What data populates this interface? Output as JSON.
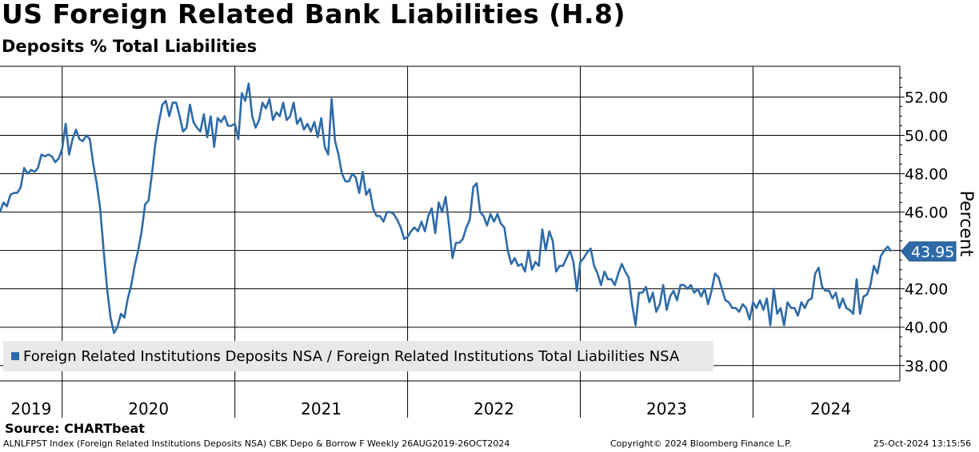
{
  "header": {
    "title": "US Foreign Related Bank Liabilities (H.8)",
    "subtitle": "Deposits % Total Liabilities"
  },
  "legend": {
    "label": "Foreign Related Institutions Deposits NSA / Foreign Related Institutions Total Liabilities NSA"
  },
  "source": "Source: CHARTbeat",
  "footer": {
    "left": "ALNLFPST Index (Foreign Related Institutions Deposits NSA) CBK Depo & Borrow F  Weekly 26AUG2019-26OCT2024",
    "middle": "Copyright© 2024 Bloomberg Finance L.P.",
    "right": "25-Oct-2024 13:15:56"
  },
  "colors": {
    "series": "#2e6aa8",
    "grid": "#000000",
    "last_value_bg": "#2e6aa8"
  },
  "chart_data": {
    "type": "line",
    "title": "US Foreign Related Bank Liabilities (H.8)",
    "subtitle": "Deposits % Total Liabilities",
    "xlabel": "",
    "ylabel": "Percent",
    "frequency": "weekly",
    "x_start": "2019-08-26",
    "x_end": "2024-10-26",
    "xlim": [
      2019.64,
      2024.85
    ],
    "ylim": [
      37.2,
      53.6
    ],
    "y_ticks": [
      38.0,
      40.0,
      42.0,
      44.0,
      46.0,
      48.0,
      50.0,
      52.0
    ],
    "y_tick_labels": [
      "38.00",
      "40.00",
      "42.00",
      "",
      "46.00",
      "48.00",
      "50.00",
      "52.00"
    ],
    "x_tick_labels": [
      "2019",
      "2020",
      "2021",
      "2022",
      "2023",
      "2024"
    ],
    "x_label_positions": [
      2019.82,
      2020.5,
      2021.5,
      2022.5,
      2023.5,
      2024.45
    ],
    "year_boundaries": [
      2020.0,
      2021.0,
      2022.0,
      2023.0,
      2024.0
    ],
    "last_value": 43.95,
    "last_value_label": "43.95",
    "grid": true,
    "legend_position": "bottom-left",
    "series": [
      {
        "name": "Foreign Related Institutions Deposits NSA / Foreign Related Institutions Total Liabilities NSA",
        "points": [
          [
            2019.64,
            46.0
          ],
          [
            2019.66,
            46.5
          ],
          [
            2019.68,
            46.3
          ],
          [
            2019.7,
            46.9
          ],
          [
            2019.72,
            47.0
          ],
          [
            2019.74,
            47.0
          ],
          [
            2019.76,
            47.3
          ],
          [
            2019.78,
            48.3
          ],
          [
            2019.8,
            48.0
          ],
          [
            2019.82,
            48.2
          ],
          [
            2019.84,
            48.1
          ],
          [
            2019.86,
            48.3
          ],
          [
            2019.88,
            49.0
          ],
          [
            2019.9,
            48.9
          ],
          [
            2019.92,
            49.0
          ],
          [
            2019.94,
            48.9
          ],
          [
            2019.96,
            48.6
          ],
          [
            2019.98,
            48.8
          ],
          [
            2020.0,
            49.3
          ],
          [
            2020.02,
            50.6
          ],
          [
            2020.04,
            49.0
          ],
          [
            2020.06,
            49.8
          ],
          [
            2020.08,
            50.3
          ],
          [
            2020.1,
            49.8
          ],
          [
            2020.12,
            49.7
          ],
          [
            2020.14,
            50.0
          ],
          [
            2020.16,
            49.8
          ],
          [
            2020.18,
            48.5
          ],
          [
            2020.2,
            47.5
          ],
          [
            2020.22,
            46.2
          ],
          [
            2020.24,
            44.0
          ],
          [
            2020.26,
            42.0
          ],
          [
            2020.28,
            40.5
          ],
          [
            2020.3,
            39.7
          ],
          [
            2020.32,
            40.0
          ],
          [
            2020.34,
            40.7
          ],
          [
            2020.36,
            40.5
          ],
          [
            2020.38,
            41.5
          ],
          [
            2020.4,
            42.2
          ],
          [
            2020.42,
            43.2
          ],
          [
            2020.44,
            44.0
          ],
          [
            2020.46,
            45.0
          ],
          [
            2020.48,
            46.4
          ],
          [
            2020.5,
            46.6
          ],
          [
            2020.52,
            48.0
          ],
          [
            2020.54,
            49.6
          ],
          [
            2020.56,
            50.7
          ],
          [
            2020.58,
            51.6
          ],
          [
            2020.6,
            51.8
          ],
          [
            2020.62,
            51.0
          ],
          [
            2020.64,
            51.7
          ],
          [
            2020.66,
            51.7
          ],
          [
            2020.68,
            51.0
          ],
          [
            2020.7,
            50.2
          ],
          [
            2020.72,
            50.4
          ],
          [
            2020.74,
            51.6
          ],
          [
            2020.76,
            50.7
          ],
          [
            2020.78,
            50.4
          ],
          [
            2020.8,
            50.2
          ],
          [
            2020.82,
            51.1
          ],
          [
            2020.84,
            49.9
          ],
          [
            2020.86,
            51.0
          ],
          [
            2020.88,
            49.4
          ],
          [
            2020.9,
            50.9
          ],
          [
            2020.92,
            50.7
          ],
          [
            2020.94,
            51.0
          ],
          [
            2020.96,
            50.5
          ],
          [
            2020.98,
            50.5
          ],
          [
            2021.0,
            50.6
          ],
          [
            2021.02,
            49.8
          ],
          [
            2021.04,
            52.2
          ],
          [
            2021.06,
            51.8
          ],
          [
            2021.08,
            52.7
          ],
          [
            2021.1,
            51.0
          ],
          [
            2021.12,
            50.4
          ],
          [
            2021.14,
            50.8
          ],
          [
            2021.16,
            51.7
          ],
          [
            2021.18,
            51.4
          ],
          [
            2021.2,
            51.9
          ],
          [
            2021.22,
            50.8
          ],
          [
            2021.24,
            51.2
          ],
          [
            2021.26,
            51.0
          ],
          [
            2021.28,
            51.7
          ],
          [
            2021.3,
            50.8
          ],
          [
            2021.32,
            51.0
          ],
          [
            2021.34,
            51.7
          ],
          [
            2021.36,
            50.6
          ],
          [
            2021.38,
            50.9
          ],
          [
            2021.4,
            50.3
          ],
          [
            2021.42,
            50.6
          ],
          [
            2021.44,
            50.2
          ],
          [
            2021.46,
            50.7
          ],
          [
            2021.48,
            49.9
          ],
          [
            2021.5,
            50.9
          ],
          [
            2021.52,
            49.4
          ],
          [
            2021.54,
            49.0
          ],
          [
            2021.56,
            51.9
          ],
          [
            2021.58,
            49.7
          ],
          [
            2021.6,
            49.0
          ],
          [
            2021.62,
            48.0
          ],
          [
            2021.64,
            47.6
          ],
          [
            2021.66,
            47.6
          ],
          [
            2021.68,
            48.0
          ],
          [
            2021.7,
            47.8
          ],
          [
            2021.72,
            47.0
          ],
          [
            2021.74,
            48.1
          ],
          [
            2021.76,
            46.9
          ],
          [
            2021.78,
            47.2
          ],
          [
            2021.8,
            46.2
          ],
          [
            2021.82,
            45.8
          ],
          [
            2021.84,
            45.8
          ],
          [
            2021.86,
            45.5
          ],
          [
            2021.88,
            46.0
          ],
          [
            2021.9,
            46.0
          ],
          [
            2021.92,
            45.9
          ],
          [
            2021.94,
            45.6
          ],
          [
            2021.96,
            45.2
          ],
          [
            2021.98,
            44.6
          ],
          [
            2022.0,
            44.7
          ],
          [
            2022.02,
            45.0
          ],
          [
            2022.04,
            45.2
          ],
          [
            2022.06,
            45.0
          ],
          [
            2022.08,
            45.5
          ],
          [
            2022.1,
            45.0
          ],
          [
            2022.12,
            45.8
          ],
          [
            2022.14,
            46.2
          ],
          [
            2022.16,
            44.9
          ],
          [
            2022.18,
            46.5
          ],
          [
            2022.2,
            46.0
          ],
          [
            2022.22,
            46.8
          ],
          [
            2022.24,
            45.3
          ],
          [
            2022.26,
            43.6
          ],
          [
            2022.28,
            44.4
          ],
          [
            2022.3,
            44.4
          ],
          [
            2022.32,
            44.6
          ],
          [
            2022.34,
            45.2
          ],
          [
            2022.36,
            45.6
          ],
          [
            2022.38,
            47.3
          ],
          [
            2022.4,
            47.5
          ],
          [
            2022.42,
            46.0
          ],
          [
            2022.44,
            45.8
          ],
          [
            2022.46,
            45.3
          ],
          [
            2022.48,
            45.9
          ],
          [
            2022.5,
            45.5
          ],
          [
            2022.52,
            45.9
          ],
          [
            2022.54,
            45.4
          ],
          [
            2022.56,
            45.2
          ],
          [
            2022.58,
            44.0
          ],
          [
            2022.6,
            43.3
          ],
          [
            2022.62,
            43.6
          ],
          [
            2022.64,
            43.2
          ],
          [
            2022.66,
            43.3
          ],
          [
            2022.68,
            42.9
          ],
          [
            2022.7,
            44.0
          ],
          [
            2022.72,
            43.0
          ],
          [
            2022.74,
            43.4
          ],
          [
            2022.76,
            43.2
          ],
          [
            2022.78,
            45.1
          ],
          [
            2022.8,
            44.0
          ],
          [
            2022.82,
            45.0
          ],
          [
            2022.84,
            44.5
          ],
          [
            2022.86,
            42.9
          ],
          [
            2022.88,
            43.2
          ],
          [
            2022.9,
            43.2
          ],
          [
            2022.92,
            43.6
          ],
          [
            2022.94,
            44.0
          ],
          [
            2022.96,
            43.4
          ],
          [
            2022.98,
            41.9
          ],
          [
            2023.0,
            43.4
          ],
          [
            2023.02,
            43.6
          ],
          [
            2023.04,
            43.9
          ],
          [
            2023.06,
            44.1
          ],
          [
            2023.08,
            43.2
          ],
          [
            2023.1,
            42.8
          ],
          [
            2023.12,
            42.2
          ],
          [
            2023.14,
            42.9
          ],
          [
            2023.16,
            42.5
          ],
          [
            2023.18,
            42.5
          ],
          [
            2023.2,
            42.2
          ],
          [
            2023.22,
            42.8
          ],
          [
            2023.24,
            43.3
          ],
          [
            2023.26,
            42.9
          ],
          [
            2023.28,
            42.6
          ],
          [
            2023.3,
            41.2
          ],
          [
            2023.32,
            40.1
          ],
          [
            2023.34,
            41.8
          ],
          [
            2023.36,
            41.8
          ],
          [
            2023.38,
            42.1
          ],
          [
            2023.4,
            41.3
          ],
          [
            2023.42,
            41.8
          ],
          [
            2023.44,
            40.8
          ],
          [
            2023.46,
            41.2
          ],
          [
            2023.48,
            42.2
          ],
          [
            2023.5,
            40.9
          ],
          [
            2023.52,
            41.6
          ],
          [
            2023.54,
            41.9
          ],
          [
            2023.56,
            41.4
          ],
          [
            2023.58,
            42.2
          ],
          [
            2023.6,
            42.2
          ],
          [
            2023.62,
            42.0
          ],
          [
            2023.64,
            42.2
          ],
          [
            2023.66,
            41.8
          ],
          [
            2023.68,
            42.0
          ],
          [
            2023.7,
            41.6
          ],
          [
            2023.72,
            42.0
          ],
          [
            2023.74,
            41.2
          ],
          [
            2023.76,
            41.9
          ],
          [
            2023.78,
            42.8
          ],
          [
            2023.8,
            42.6
          ],
          [
            2023.82,
            42.0
          ],
          [
            2023.84,
            41.4
          ],
          [
            2023.86,
            41.3
          ],
          [
            2023.88,
            41.0
          ],
          [
            2023.9,
            41.0
          ],
          [
            2023.92,
            40.8
          ],
          [
            2023.94,
            41.2
          ],
          [
            2023.96,
            41.0
          ],
          [
            2023.98,
            40.4
          ],
          [
            2024.0,
            41.3
          ],
          [
            2024.02,
            41.0
          ],
          [
            2024.04,
            41.4
          ],
          [
            2024.06,
            40.9
          ],
          [
            2024.08,
            41.5
          ],
          [
            2024.1,
            40.1
          ],
          [
            2024.12,
            42.0
          ],
          [
            2024.14,
            40.7
          ],
          [
            2024.16,
            41.0
          ],
          [
            2024.18,
            40.1
          ],
          [
            2024.2,
            41.3
          ],
          [
            2024.22,
            41.0
          ],
          [
            2024.24,
            41.0
          ],
          [
            2024.26,
            40.6
          ],
          [
            2024.28,
            41.3
          ],
          [
            2024.3,
            41.0
          ],
          [
            2024.32,
            41.4
          ],
          [
            2024.34,
            41.5
          ],
          [
            2024.36,
            42.8
          ],
          [
            2024.38,
            43.1
          ],
          [
            2024.4,
            42.1
          ],
          [
            2024.42,
            41.9
          ],
          [
            2024.44,
            41.9
          ],
          [
            2024.46,
            41.5
          ],
          [
            2024.48,
            41.8
          ],
          [
            2024.5,
            41.0
          ],
          [
            2024.52,
            41.5
          ],
          [
            2024.54,
            41.0
          ],
          [
            2024.56,
            40.9
          ],
          [
            2024.58,
            40.7
          ],
          [
            2024.6,
            42.5
          ],
          [
            2024.62,
            40.7
          ],
          [
            2024.64,
            41.6
          ],
          [
            2024.66,
            41.7
          ],
          [
            2024.68,
            42.2
          ],
          [
            2024.7,
            43.2
          ],
          [
            2024.72,
            42.8
          ],
          [
            2024.74,
            43.7
          ],
          [
            2024.76,
            44.0
          ],
          [
            2024.78,
            44.2
          ],
          [
            2024.8,
            43.95
          ]
        ]
      }
    ]
  }
}
